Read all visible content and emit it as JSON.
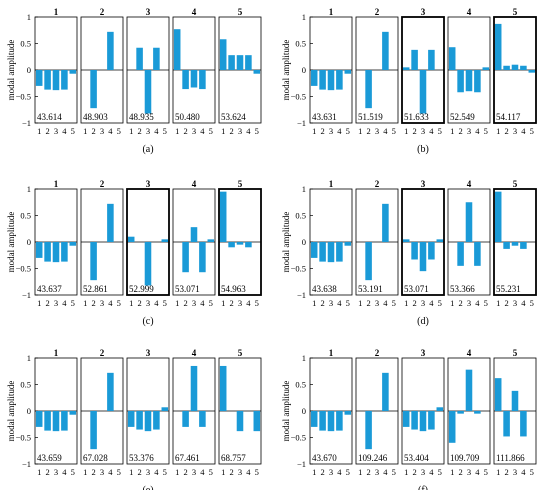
{
  "figure": {
    "ylabel": "modal amplitude",
    "y_ticks": [
      "1",
      "0.5",
      "0",
      "−0.5",
      "−1"
    ],
    "x_ticks": [
      "1",
      "2",
      "3",
      "4",
      "5"
    ]
  },
  "colors": {
    "bar": "#1a9ad7",
    "frame": "#000000",
    "zero_line": "#000000"
  },
  "chart_data": [
    {
      "type": "bar",
      "sublabel": "(a)",
      "ylim": [
        -1,
        1
      ],
      "categories": [
        "1",
        "2",
        "3",
        "4",
        "5"
      ],
      "panels": [
        {
          "mode": "1",
          "freq": "43.614",
          "highlight": false,
          "values": [
            -0.3,
            -0.37,
            -0.38,
            -0.37,
            -0.07
          ]
        },
        {
          "mode": "2",
          "freq": "48.903",
          "highlight": false,
          "values": [
            0.0,
            -0.72,
            0.0,
            0.72,
            0.0
          ]
        },
        {
          "mode": "3",
          "freq": "48.935",
          "highlight": false,
          "values": [
            0.0,
            0.42,
            -0.82,
            0.42,
            0.0
          ]
        },
        {
          "mode": "4",
          "freq": "50.480",
          "highlight": false,
          "values": [
            0.77,
            -0.36,
            -0.33,
            -0.36,
            0.0
          ]
        },
        {
          "mode": "5",
          "freq": "53.624",
          "highlight": false,
          "values": [
            0.58,
            0.28,
            0.28,
            0.28,
            -0.07
          ]
        }
      ]
    },
    {
      "type": "bar",
      "sublabel": "(b)",
      "ylim": [
        -1,
        1
      ],
      "categories": [
        "1",
        "2",
        "3",
        "4",
        "5"
      ],
      "panels": [
        {
          "mode": "1",
          "freq": "43.631",
          "highlight": false,
          "values": [
            -0.3,
            -0.37,
            -0.38,
            -0.37,
            -0.07
          ]
        },
        {
          "mode": "2",
          "freq": "51.519",
          "highlight": false,
          "values": [
            0.0,
            -0.72,
            0.0,
            0.72,
            0.0
          ]
        },
        {
          "mode": "3",
          "freq": "51.633",
          "highlight": true,
          "values": [
            0.05,
            0.38,
            -0.82,
            0.38,
            0.0
          ]
        },
        {
          "mode": "4",
          "freq": "52.549",
          "highlight": false,
          "values": [
            0.43,
            -0.42,
            -0.4,
            -0.42,
            0.05
          ]
        },
        {
          "mode": "5",
          "freq": "54.117",
          "highlight": true,
          "values": [
            0.87,
            0.08,
            0.1,
            0.08,
            -0.05
          ]
        }
      ]
    },
    {
      "type": "bar",
      "sublabel": "(c)",
      "ylim": [
        -1,
        1
      ],
      "categories": [
        "1",
        "2",
        "3",
        "4",
        "5"
      ],
      "panels": [
        {
          "mode": "1",
          "freq": "43.637",
          "highlight": false,
          "values": [
            -0.3,
            -0.37,
            -0.38,
            -0.37,
            -0.07
          ]
        },
        {
          "mode": "2",
          "freq": "52.861",
          "highlight": false,
          "values": [
            0.0,
            -0.72,
            0.0,
            0.72,
            0.0
          ]
        },
        {
          "mode": "3",
          "freq": "52.999",
          "highlight": true,
          "values": [
            0.1,
            0.0,
            -0.82,
            0.0,
            0.05
          ]
        },
        {
          "mode": "4",
          "freq": "53.071",
          "highlight": false,
          "values": [
            0.0,
            -0.57,
            0.28,
            -0.57,
            0.05
          ]
        },
        {
          "mode": "5",
          "freq": "54.963",
          "highlight": true,
          "values": [
            0.95,
            -0.1,
            -0.05,
            -0.1,
            0.0
          ]
        }
      ]
    },
    {
      "type": "bar",
      "sublabel": "(d)",
      "ylim": [
        -1,
        1
      ],
      "categories": [
        "1",
        "2",
        "3",
        "4",
        "5"
      ],
      "panels": [
        {
          "mode": "1",
          "freq": "43.638",
          "highlight": false,
          "values": [
            -0.3,
            -0.37,
            -0.38,
            -0.37,
            -0.07
          ]
        },
        {
          "mode": "2",
          "freq": "53.191",
          "highlight": false,
          "values": [
            0.0,
            -0.72,
            0.0,
            0.72,
            0.0
          ]
        },
        {
          "mode": "3",
          "freq": "53.071",
          "highlight": true,
          "values": [
            0.05,
            -0.33,
            -0.55,
            -0.33,
            0.05
          ]
        },
        {
          "mode": "4",
          "freq": "53.366",
          "highlight": false,
          "values": [
            0.0,
            -0.45,
            0.75,
            -0.45,
            0.0
          ]
        },
        {
          "mode": "5",
          "freq": "55.231",
          "highlight": true,
          "values": [
            0.95,
            -0.13,
            -0.07,
            -0.13,
            0.0
          ]
        }
      ]
    },
    {
      "type": "bar",
      "sublabel": "(e)",
      "ylim": [
        -1,
        1
      ],
      "categories": [
        "1",
        "2",
        "3",
        "4",
        "5"
      ],
      "panels": [
        {
          "mode": "1",
          "freq": "43.659",
          "highlight": false,
          "values": [
            -0.3,
            -0.37,
            -0.38,
            -0.37,
            -0.07
          ]
        },
        {
          "mode": "2",
          "freq": "67.028",
          "highlight": false,
          "values": [
            0.0,
            -0.72,
            0.0,
            0.72,
            0.0
          ]
        },
        {
          "mode": "3",
          "freq": "53.376",
          "highlight": false,
          "values": [
            -0.3,
            -0.35,
            -0.38,
            -0.35,
            0.07
          ]
        },
        {
          "mode": "4",
          "freq": "67.461",
          "highlight": false,
          "values": [
            0.0,
            -0.3,
            0.85,
            -0.3,
            0.0
          ]
        },
        {
          "mode": "5",
          "freq": "68.757",
          "highlight": false,
          "values": [
            0.85,
            0.0,
            -0.38,
            0.0,
            -0.38
          ]
        }
      ]
    },
    {
      "type": "bar",
      "sublabel": "(f)",
      "ylim": [
        -1,
        1
      ],
      "categories": [
        "1",
        "2",
        "3",
        "4",
        "5"
      ],
      "panels": [
        {
          "mode": "1",
          "freq": "43.670",
          "highlight": false,
          "values": [
            -0.3,
            -0.37,
            -0.38,
            -0.37,
            -0.07
          ]
        },
        {
          "mode": "2",
          "freq": "109.246",
          "highlight": false,
          "values": [
            0.0,
            -0.72,
            0.0,
            0.72,
            0.0
          ]
        },
        {
          "mode": "3",
          "freq": "53.404",
          "highlight": false,
          "values": [
            -0.3,
            -0.35,
            -0.38,
            -0.35,
            0.07
          ]
        },
        {
          "mode": "4",
          "freq": "109.709",
          "highlight": false,
          "values": [
            -0.6,
            -0.05,
            0.78,
            -0.05,
            0.0
          ]
        },
        {
          "mode": "5",
          "freq": "111.866",
          "highlight": false,
          "values": [
            0.62,
            -0.48,
            0.38,
            -0.48,
            0.0
          ]
        }
      ]
    }
  ]
}
